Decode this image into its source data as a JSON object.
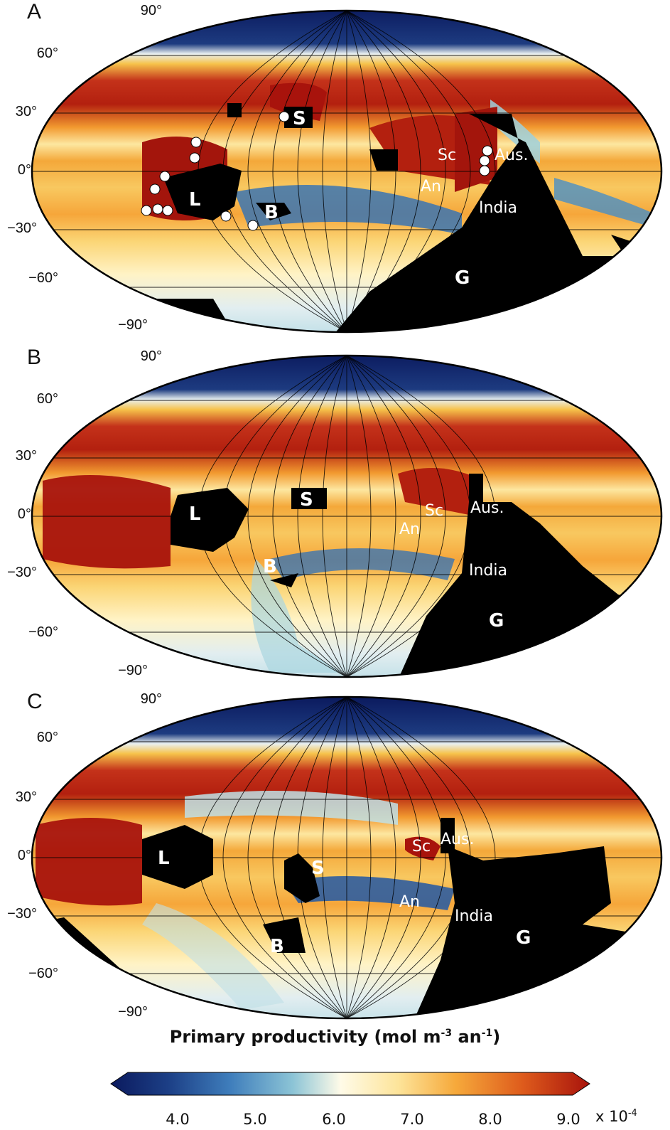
{
  "panels": [
    {
      "letter": "A",
      "lat_labels": [
        "90°",
        "60°",
        "30°",
        "0°",
        "−30°",
        "−60°",
        "−90°"
      ],
      "labels": {
        "L": "L",
        "S": "S",
        "B": "B",
        "G": "G",
        "Sc": "Sc",
        "An": "An",
        "Aus": "Aus.",
        "India": "India"
      }
    },
    {
      "letter": "B",
      "lat_labels": [
        "90°",
        "60°",
        "30°",
        "0°",
        "−30°",
        "−60°",
        "−90°"
      ],
      "labels": {
        "L": "L",
        "S": "S",
        "B": "B",
        "G": "G",
        "Sc": "Sc",
        "An": "An",
        "Aus": "Aus.",
        "India": "India"
      }
    },
    {
      "letter": "C",
      "lat_labels": [
        "90°",
        "60°",
        "30°",
        "0°",
        "−30°",
        "−60°",
        "−90°"
      ],
      "labels": {
        "L": "L",
        "S": "S",
        "B": "B",
        "G": "G",
        "Sc": "Sc",
        "An": "An",
        "Aus": "Aus.",
        "India": "India"
      }
    }
  ],
  "colorbar": {
    "title_main": "Primary productivity (mol m",
    "title_exp1": "-3",
    "title_mid": " an",
    "title_exp2": "-1",
    "title_end": ")",
    "ticks": [
      "4.0",
      "5.0",
      "6.0",
      "7.0",
      "8.0",
      "9.0"
    ],
    "unit_prefix": "x 10",
    "unit_exp": "-4"
  },
  "colors": {
    "low": "#0b1a5e",
    "mid_low": "#4a8fc4",
    "mid": "#fffbe0",
    "mid_high": "#f6b03a",
    "high": "#a8130c",
    "land": "#000000"
  }
}
